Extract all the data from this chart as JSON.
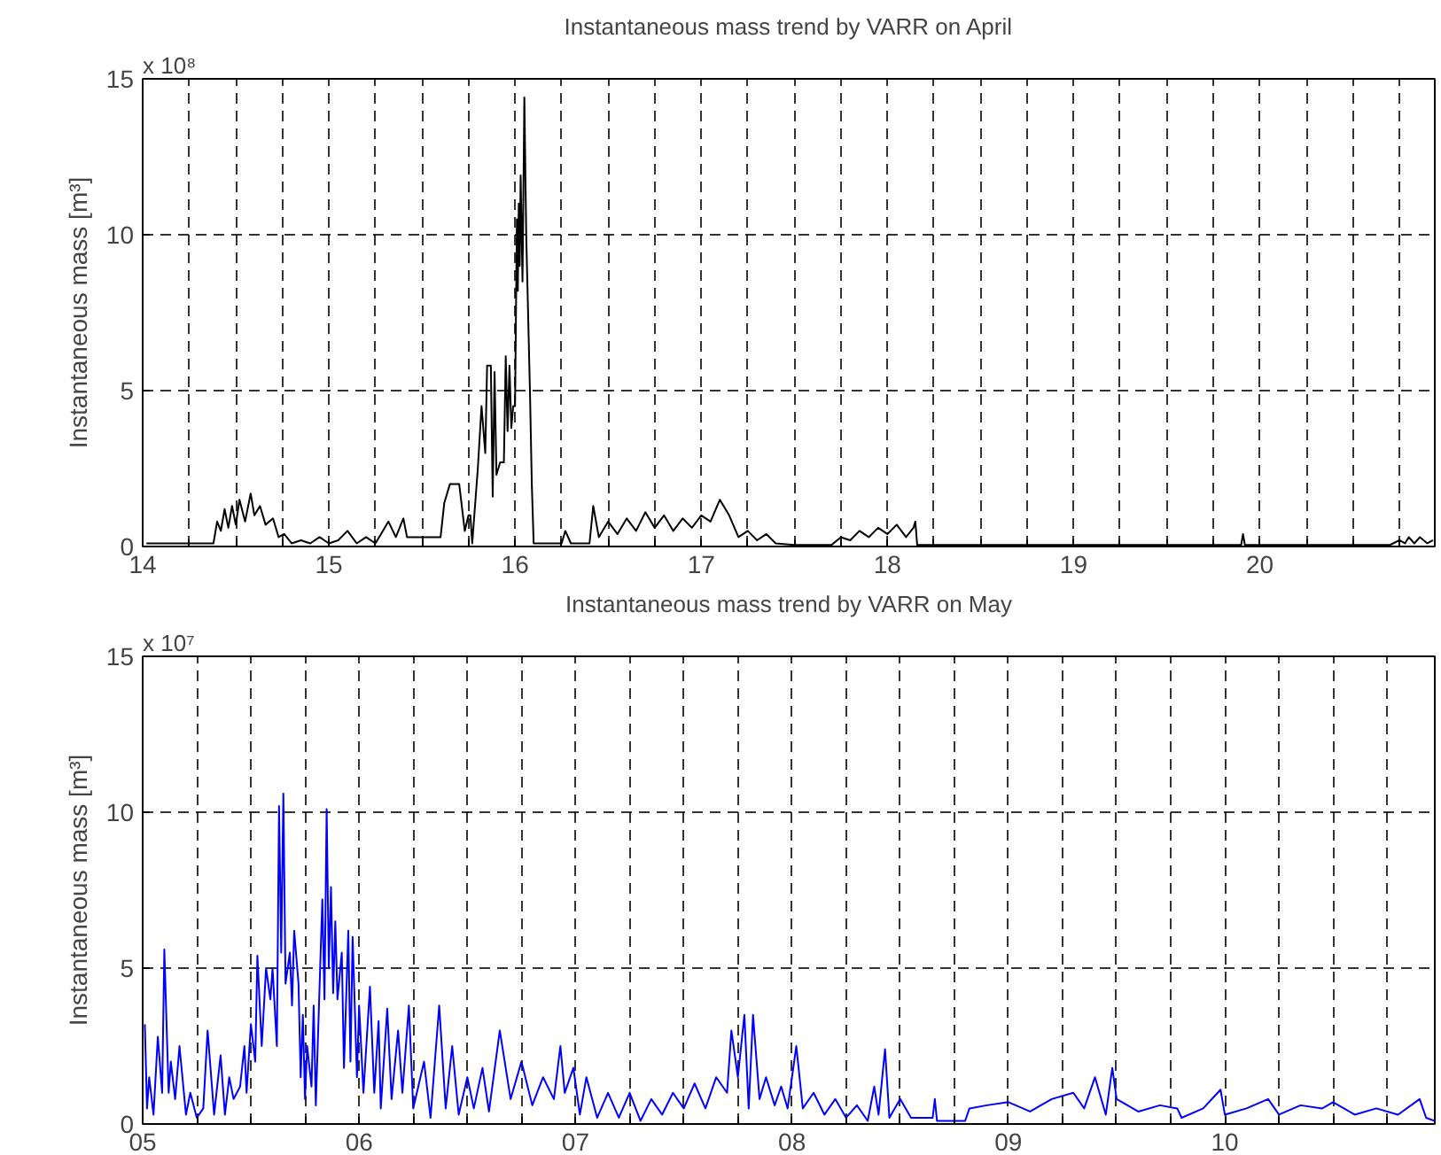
{
  "chart_data": [
    {
      "type": "line",
      "title": "Instantaneous mass trend by VARR on April",
      "ylabel": "Instantaneous mass [m³]",
      "annotations": [
        "x 10⁸"
      ],
      "grid": true,
      "line_style": "solid",
      "xlim": [
        14,
        20.94
      ],
      "ylim": [
        0,
        15
      ],
      "yticks": [
        0,
        5,
        10,
        15
      ],
      "xticks": [
        14,
        {
          "value": 14.25,
          "label": null
        },
        {
          "value": 14.5,
          "label": null
        },
        {
          "value": 14.75,
          "label": null
        },
        15,
        {
          "value": 15.25,
          "label": null
        },
        {
          "value": 15.5,
          "label": null
        },
        {
          "value": 15.75,
          "label": null
        },
        16,
        {
          "value": 16.25,
          "label": null
        },
        {
          "value": 16.5,
          "label": null
        },
        {
          "value": 16.75,
          "label": null
        },
        17,
        {
          "value": 17.25,
          "label": null
        },
        {
          "value": 17.5,
          "label": null
        },
        {
          "value": 17.75,
          "label": null
        },
        18,
        {
          "value": 18.25,
          "label": null
        },
        {
          "value": 18.5,
          "label": null
        },
        {
          "value": 18.75,
          "label": null
        },
        19,
        {
          "value": 19.25,
          "label": null
        },
        {
          "value": 19.5,
          "label": null
        },
        {
          "value": 19.75,
          "label": null
        },
        20,
        {
          "value": 20.25,
          "label": null
        },
        {
          "value": 20.5,
          "label": null
        },
        {
          "value": 20.75,
          "label": null
        }
      ],
      "series": [
        {
          "color": "#000000",
          "x": [
            14.02,
            14.38,
            14.4,
            14.42,
            14.44,
            14.46,
            14.48,
            14.5,
            14.52,
            14.55,
            14.58,
            14.6,
            14.63,
            14.66,
            14.7,
            14.73,
            14.76,
            14.8,
            14.85,
            14.9,
            14.95,
            15.0,
            15.05,
            15.1,
            15.15,
            15.2,
            15.25,
            15.28,
            15.32,
            15.36,
            15.4,
            15.42,
            15.6,
            15.62,
            15.65,
            15.7,
            15.73,
            15.75,
            15.76,
            15.77,
            15.8,
            15.82,
            15.84,
            15.85,
            15.87,
            15.88,
            15.89,
            15.9,
            15.92,
            15.94,
            15.95,
            15.96,
            15.97,
            15.98,
            15.99,
            16.0,
            16.01,
            16.015,
            16.02,
            16.025,
            16.03,
            16.04,
            16.05,
            16.06,
            16.08,
            16.09,
            16.1,
            16.25,
            16.27,
            16.3,
            16.4,
            16.42,
            16.45,
            16.5,
            16.55,
            16.6,
            16.65,
            16.7,
            16.75,
            16.8,
            16.85,
            16.9,
            16.95,
            17.0,
            17.05,
            17.1,
            17.15,
            17.2,
            17.25,
            17.3,
            17.35,
            17.4,
            17.5,
            17.7,
            17.75,
            17.8,
            17.85,
            17.9,
            17.95,
            18.0,
            18.05,
            18.1,
            18.14,
            18.15,
            18.16,
            19.9,
            19.91,
            19.92,
            20.7,
            20.75,
            20.78,
            20.8,
            20.83,
            20.86,
            20.9,
            20.93
          ],
          "values": [
            0.1,
            0.1,
            0.8,
            0.5,
            1.2,
            0.6,
            1.3,
            0.7,
            1.5,
            0.8,
            1.7,
            1.0,
            1.3,
            0.7,
            0.9,
            0.3,
            0.4,
            0.1,
            0.2,
            0.1,
            0.3,
            0.1,
            0.2,
            0.5,
            0.1,
            0.3,
            0.1,
            0.4,
            0.8,
            0.3,
            0.9,
            0.3,
            0.3,
            1.4,
            2.0,
            2.0,
            0.5,
            1.0,
            1.0,
            0.1,
            2.5,
            4.5,
            3.0,
            5.8,
            5.8,
            1.6,
            5.6,
            2.3,
            2.7,
            2.7,
            6.1,
            3.7,
            5.8,
            3.8,
            4.5,
            4.5,
            10.5,
            8.2,
            11.0,
            9.0,
            11.9,
            8.5,
            14.4,
            10.0,
            5.0,
            2.0,
            0.1,
            0.1,
            0.5,
            0.1,
            0.1,
            1.3,
            0.3,
            0.8,
            0.4,
            0.9,
            0.5,
            1.1,
            0.6,
            1.0,
            0.5,
            0.9,
            0.6,
            1.0,
            0.8,
            1.5,
            1.0,
            0.3,
            0.5,
            0.2,
            0.4,
            0.1,
            0.05,
            0.05,
            0.3,
            0.2,
            0.5,
            0.3,
            0.6,
            0.4,
            0.7,
            0.3,
            0.6,
            0.8,
            0.05,
            0.05,
            0.4,
            0.05,
            0.05,
            0.2,
            0.1,
            0.3,
            0.1,
            0.3,
            0.1,
            0.2
          ]
        }
      ]
    },
    {
      "type": "line",
      "title": "Instantaneous mass trend by VARR on May",
      "ylabel": "Instantaneous mass [m³]",
      "annotations": [
        "x 10⁷"
      ],
      "grid": true,
      "line_style": "solid",
      "xlim": [
        5,
        10.97
      ],
      "ylim": [
        0,
        15
      ],
      "yticks": [
        0,
        5,
        10,
        15
      ],
      "xticks": [
        {
          "value": 5,
          "label": "05"
        },
        {
          "value": 5.25,
          "label": null
        },
        {
          "value": 5.5,
          "label": null
        },
        {
          "value": 5.75,
          "label": null
        },
        {
          "value": 6,
          "label": "06"
        },
        {
          "value": 6.25,
          "label": null
        },
        {
          "value": 6.5,
          "label": null
        },
        {
          "value": 6.75,
          "label": null
        },
        {
          "value": 7,
          "label": "07"
        },
        {
          "value": 7.25,
          "label": null
        },
        {
          "value": 7.5,
          "label": null
        },
        {
          "value": 7.75,
          "label": null
        },
        {
          "value": 8,
          "label": "08"
        },
        {
          "value": 8.25,
          "label": null
        },
        {
          "value": 8.5,
          "label": null
        },
        {
          "value": 8.75,
          "label": null
        },
        {
          "value": 9,
          "label": "09"
        },
        {
          "value": 9.25,
          "label": null
        },
        {
          "value": 9.5,
          "label": null
        },
        {
          "value": 9.75,
          "label": null
        },
        {
          "value": 10,
          "label": "10"
        },
        {
          "value": 10.25,
          "label": null
        },
        {
          "value": 10.5,
          "label": null
        },
        {
          "value": 10.75,
          "label": null
        }
      ],
      "series": [
        {
          "color": "#0000ff",
          "x": [
            5.01,
            5.02,
            5.03,
            5.05,
            5.07,
            5.09,
            5.1,
            5.12,
            5.13,
            5.15,
            5.17,
            5.2,
            5.22,
            5.25,
            5.28,
            5.3,
            5.33,
            5.36,
            5.38,
            5.4,
            5.42,
            5.45,
            5.47,
            5.48,
            5.5,
            5.52,
            5.53,
            5.55,
            5.57,
            5.59,
            5.6,
            5.62,
            5.63,
            5.64,
            5.65,
            5.66,
            5.68,
            5.69,
            5.7,
            5.72,
            5.73,
            5.74,
            5.75,
            5.76,
            5.78,
            5.79,
            5.8,
            5.82,
            5.83,
            5.84,
            5.85,
            5.86,
            5.87,
            5.88,
            5.89,
            5.9,
            5.92,
            5.93,
            5.95,
            5.96,
            5.97,
            5.99,
            6.0,
            6.02,
            6.05,
            6.07,
            6.09,
            6.1,
            6.13,
            6.15,
            6.18,
            6.2,
            6.23,
            6.25,
            6.3,
            6.33,
            6.37,
            6.4,
            6.43,
            6.46,
            6.5,
            6.53,
            6.57,
            6.6,
            6.65,
            6.7,
            6.75,
            6.8,
            6.85,
            6.9,
            6.93,
            6.95,
            6.99,
            7.02,
            7.05,
            7.1,
            7.15,
            7.2,
            7.25,
            7.3,
            7.35,
            7.4,
            7.45,
            7.5,
            7.55,
            7.6,
            7.65,
            7.7,
            7.72,
            7.75,
            7.78,
            7.8,
            7.82,
            7.85,
            7.88,
            7.92,
            7.95,
            7.98,
            8.02,
            8.05,
            8.1,
            8.15,
            8.2,
            8.25,
            8.3,
            8.35,
            8.38,
            8.4,
            8.43,
            8.45,
            8.5,
            8.55,
            8.6,
            8.65,
            8.66,
            8.67,
            8.8,
            8.82,
            8.9,
            9.0,
            9.1,
            9.2,
            9.3,
            9.35,
            9.4,
            9.45,
            9.48,
            9.5,
            9.55,
            9.6,
            9.7,
            9.78,
            9.8,
            9.9,
            9.98,
            10.0,
            10.1,
            10.2,
            10.25,
            10.35,
            10.45,
            10.5,
            10.6,
            10.7,
            10.8,
            10.9,
            10.93,
            10.97
          ],
          "values": [
            3.2,
            0.5,
            1.5,
            0.3,
            2.8,
            1.0,
            5.6,
            1.0,
            2.0,
            0.8,
            2.5,
            0.3,
            1.0,
            0.2,
            0.5,
            3.0,
            0.3,
            2.2,
            0.3,
            1.5,
            0.8,
            1.2,
            2.5,
            1.0,
            3.2,
            2.0,
            5.4,
            2.5,
            5.0,
            4.0,
            5.0,
            2.5,
            10.2,
            5.5,
            10.6,
            4.5,
            5.5,
            3.8,
            6.2,
            4.5,
            1.5,
            3.5,
            0.8,
            2.5,
            1.2,
            3.8,
            0.6,
            5.0,
            7.2,
            4.0,
            10.1,
            5.0,
            7.6,
            4.2,
            6.5,
            4.0,
            5.5,
            1.8,
            6.2,
            2.0,
            6.0,
            1.5,
            3.8,
            1.0,
            4.4,
            1.0,
            3.3,
            0.5,
            3.7,
            0.8,
            3.0,
            1.0,
            3.8,
            0.5,
            2.0,
            0.2,
            3.8,
            0.5,
            2.5,
            0.3,
            1.5,
            0.5,
            1.8,
            0.4,
            3.0,
            0.8,
            2.0,
            0.6,
            1.5,
            0.8,
            2.5,
            1.0,
            1.8,
            0.3,
            1.5,
            0.2,
            1.0,
            0.2,
            1.0,
            0.1,
            0.8,
            0.3,
            1.0,
            0.5,
            1.3,
            0.5,
            1.5,
            1.0,
            3.0,
            1.5,
            3.5,
            0.5,
            3.5,
            0.8,
            1.5,
            0.6,
            1.2,
            0.5,
            2.5,
            0.5,
            1.0,
            0.3,
            0.8,
            0.2,
            0.6,
            0.1,
            1.2,
            0.3,
            2.4,
            0.2,
            0.8,
            0.2,
            0.2,
            0.2,
            0.8,
            0.1,
            0.1,
            0.5,
            0.6,
            0.7,
            0.4,
            0.8,
            1.0,
            0.5,
            1.5,
            0.3,
            1.8,
            0.8,
            0.6,
            0.4,
            0.6,
            0.5,
            0.2,
            0.5,
            1.1,
            0.3,
            0.5,
            0.8,
            0.3,
            0.6,
            0.5,
            0.7,
            0.3,
            0.5,
            0.3,
            0.8,
            0.2,
            0.1
          ]
        }
      ]
    }
  ]
}
